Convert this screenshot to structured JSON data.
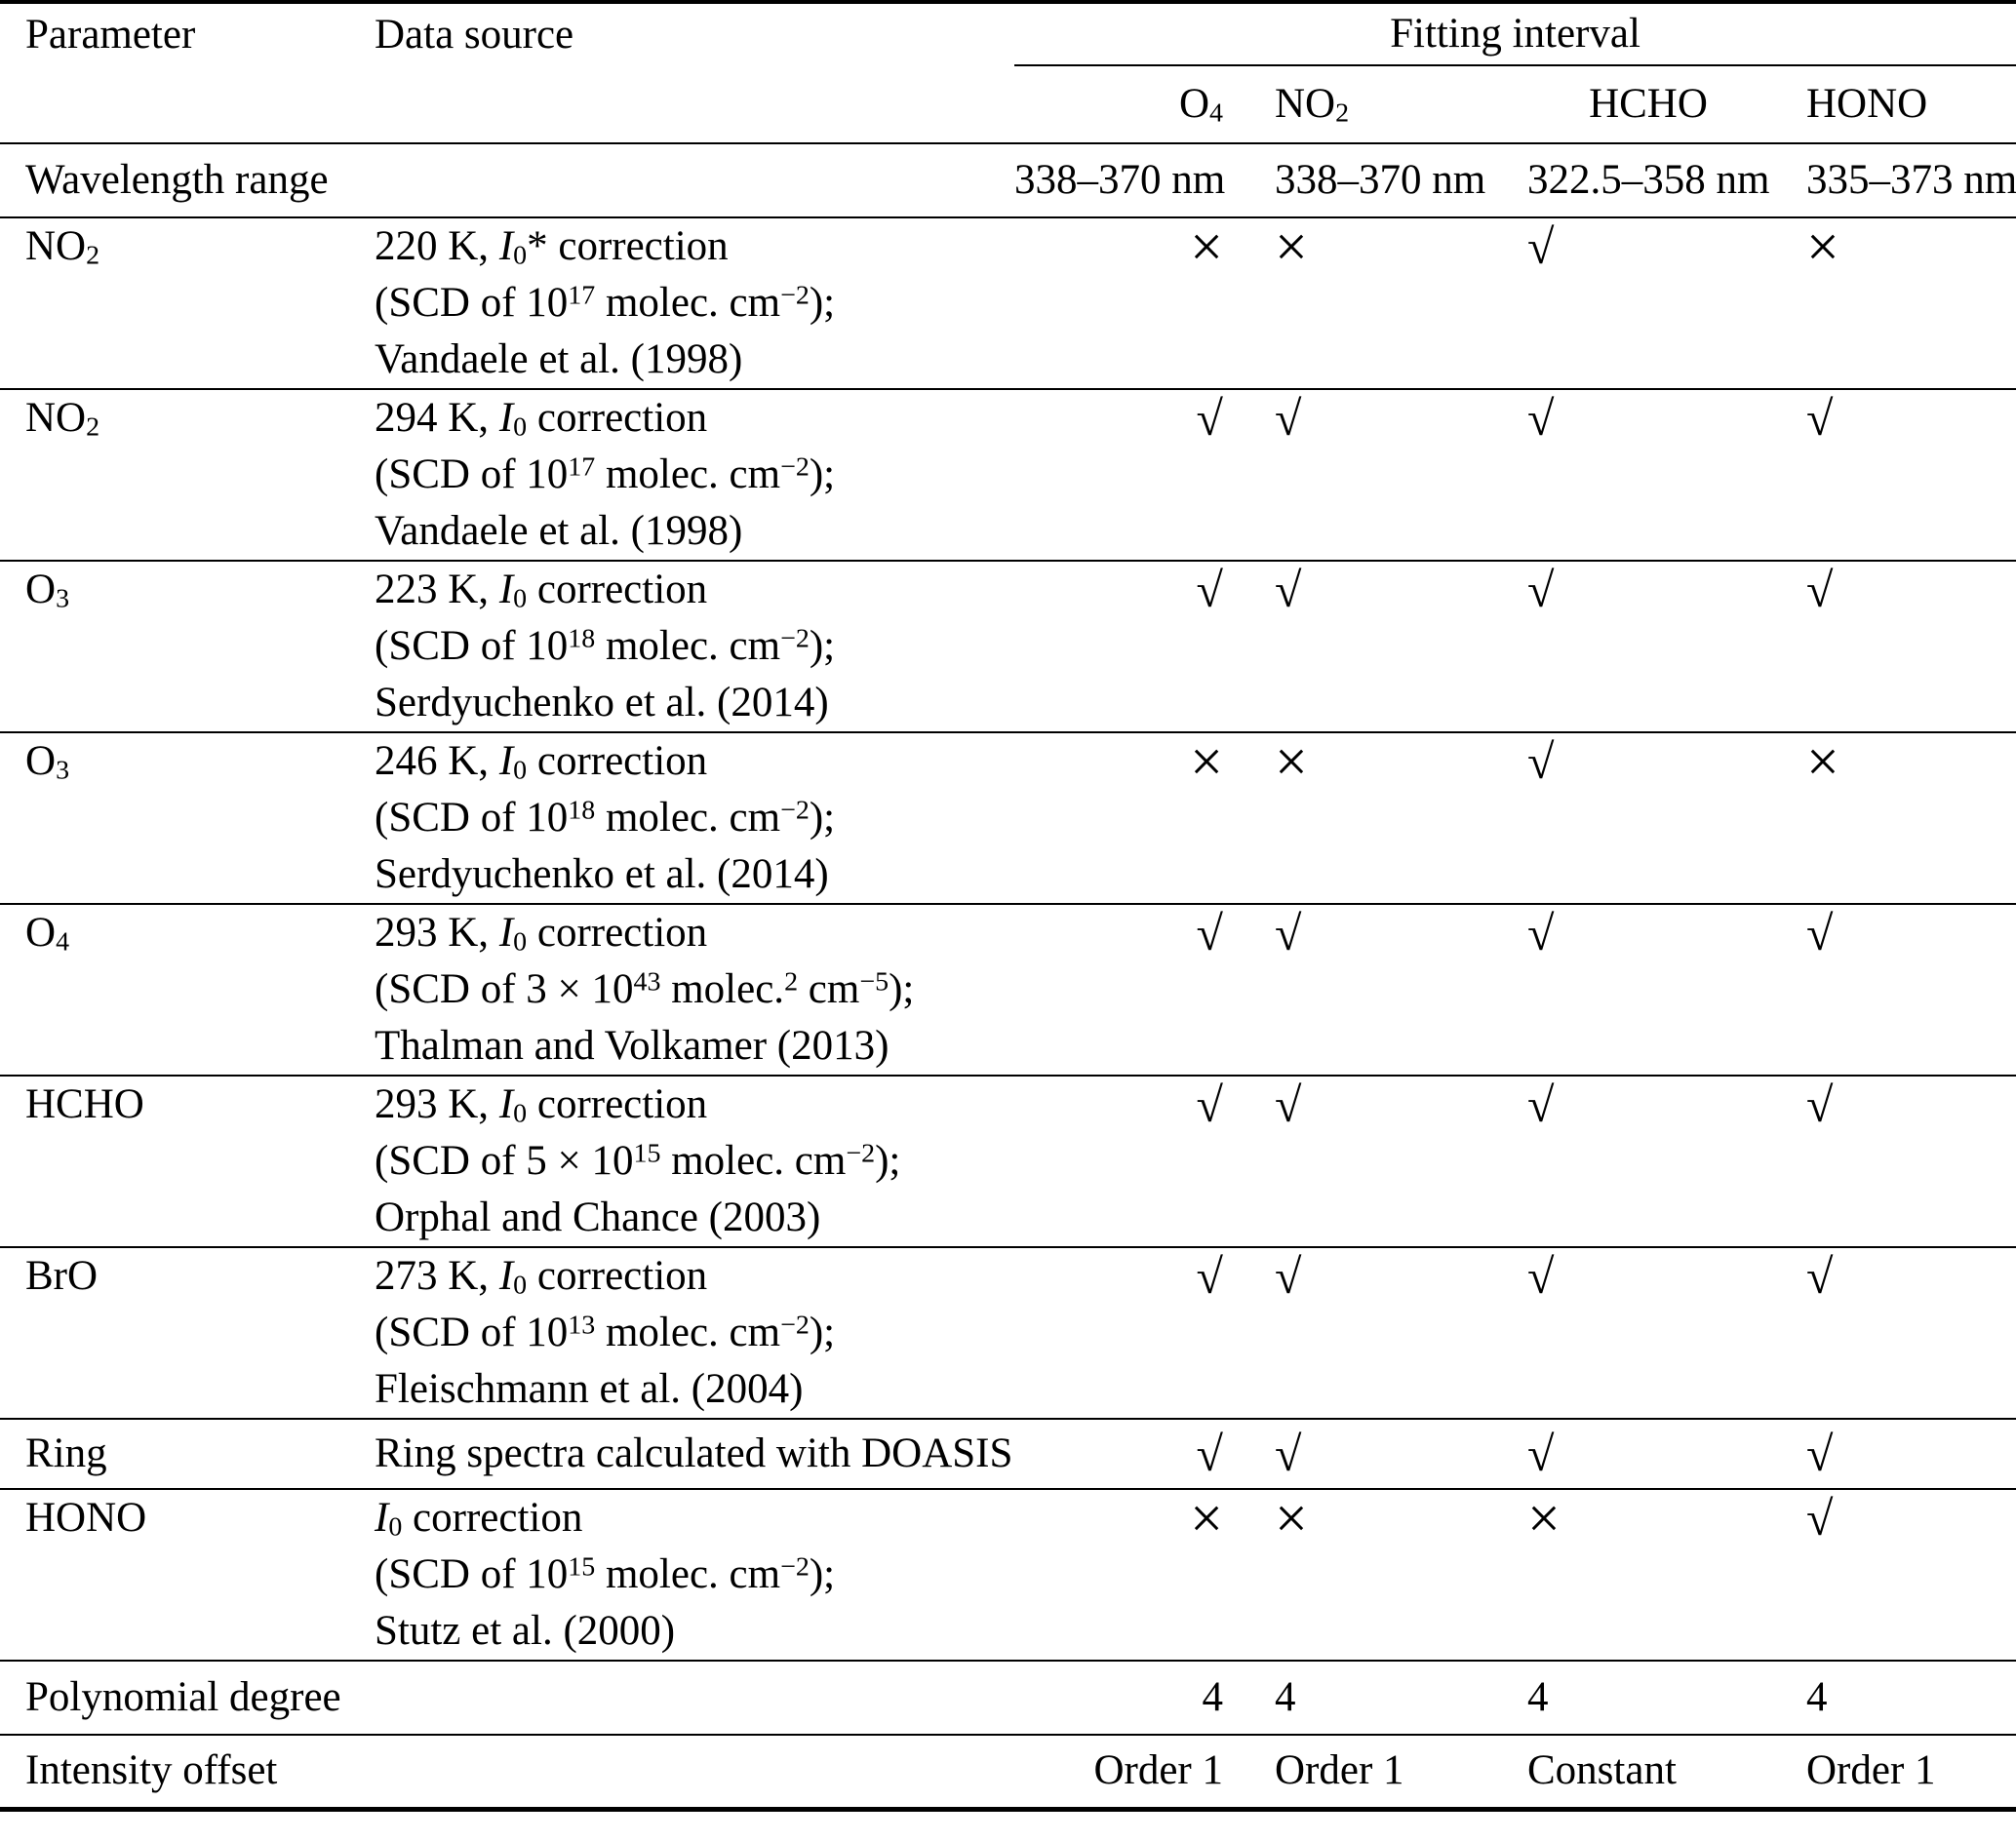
{
  "table": {
    "header": {
      "parameter": "Parameter",
      "data_source": "Data source",
      "fitting_interval": "Fitting interval",
      "columns": [
        {
          "id": "o4",
          "label": "O4",
          "label_html": "O<sub>4</sub>"
        },
        {
          "id": "no2",
          "label": "NO2",
          "label_html": "NO<sub>2</sub>"
        },
        {
          "id": "hcho",
          "label": "HCHO",
          "label_html": "HCHO"
        },
        {
          "id": "hono",
          "label": "HONO",
          "label_html": "HONO"
        }
      ]
    },
    "wavelength_row": {
      "parameter": "Wavelength range",
      "values": [
        "338–370 nm",
        "338–370 nm",
        "322.5–358 nm",
        "335–373 nm"
      ]
    },
    "parameter_rows": [
      {
        "parameter": "NO2",
        "parameter_html": "NO<sub>2</sub>",
        "source_lines": [
          "220 K, <i>I</i><sub>0</sub>* correction",
          "(SCD of 10<sup>17</sup> molec. cm<sup>−2</sup>);",
          "Vandaele et al. (1998)"
        ],
        "marks": [
          "cross",
          "cross",
          "check",
          "cross"
        ]
      },
      {
        "parameter": "NO2",
        "parameter_html": "NO<sub>2</sub>",
        "source_lines": [
          "294 K, <i>I</i><sub>0</sub> correction",
          "(SCD of 10<sup>17</sup> molec. cm<sup>−2</sup>);",
          "Vandaele et al. (1998)"
        ],
        "marks": [
          "check",
          "check",
          "check",
          "check"
        ]
      },
      {
        "parameter": "O3",
        "parameter_html": "O<sub>3</sub>",
        "source_lines": [
          "223 K, <i>I</i><sub>0</sub> correction",
          "(SCD of 10<sup>18</sup> molec. cm<sup>−2</sup>);",
          "Serdyuchenko et al. (2014)"
        ],
        "marks": [
          "check",
          "check",
          "check",
          "check"
        ]
      },
      {
        "parameter": "O3",
        "parameter_html": "O<sub>3</sub>",
        "source_lines": [
          "246 K, <i>I</i><sub>0</sub> correction",
          "(SCD of 10<sup>18</sup> molec. cm<sup>−2</sup>);",
          "Serdyuchenko et al. (2014)"
        ],
        "marks": [
          "cross",
          "cross",
          "check",
          "cross"
        ]
      },
      {
        "parameter": "O4",
        "parameter_html": "O<sub>4</sub>",
        "source_lines": [
          "293 K, <i>I</i><sub>0</sub> correction",
          "(SCD of 3 × 10<sup>43</sup> molec.<sup>2</sup> cm<sup>−5</sup>);",
          "Thalman and Volkamer (2013)"
        ],
        "marks": [
          "check",
          "check",
          "check",
          "check"
        ]
      },
      {
        "parameter": "HCHO",
        "parameter_html": "HCHO",
        "source_lines": [
          "293 K, <i>I</i><sub>0</sub> correction",
          "(SCD of 5 × 10<sup>15</sup> molec. cm<sup>−2</sup>);",
          "Orphal and Chance (2003)"
        ],
        "marks": [
          "check",
          "check",
          "check",
          "check"
        ]
      },
      {
        "parameter": "BrO",
        "parameter_html": "BrO",
        "source_lines": [
          "273 K, <i>I</i><sub>0</sub> correction",
          "(SCD of 10<sup>13</sup> molec. cm<sup>−2</sup>);",
          "Fleischmann et al. (2004)"
        ],
        "marks": [
          "check",
          "check",
          "check",
          "check"
        ]
      },
      {
        "parameter": "Ring",
        "parameter_html": "Ring",
        "source_lines": [
          "Ring spectra calculated with DOASIS"
        ],
        "marks": [
          "check",
          "check",
          "check",
          "check"
        ]
      },
      {
        "parameter": "HONO",
        "parameter_html": "HONO",
        "source_lines": [
          "<i>I</i><sub>0</sub> correction",
          "(SCD of 10<sup>15</sup> molec. cm<sup>−2</sup>);",
          "Stutz et al. (2000)"
        ],
        "marks": [
          "cross",
          "cross",
          "cross",
          "check"
        ]
      }
    ],
    "footer_rows": [
      {
        "parameter": "Polynomial degree",
        "values": [
          "4",
          "4",
          "4",
          "4"
        ]
      },
      {
        "parameter": "Intensity offset",
        "values": [
          "Order 1",
          "Order 1",
          "Constant",
          "Order 1"
        ]
      }
    ],
    "symbols": {
      "check": "√",
      "cross": "×"
    },
    "colors": {
      "text": "#000000",
      "background": "#ffffff",
      "rule": "#000000"
    }
  }
}
